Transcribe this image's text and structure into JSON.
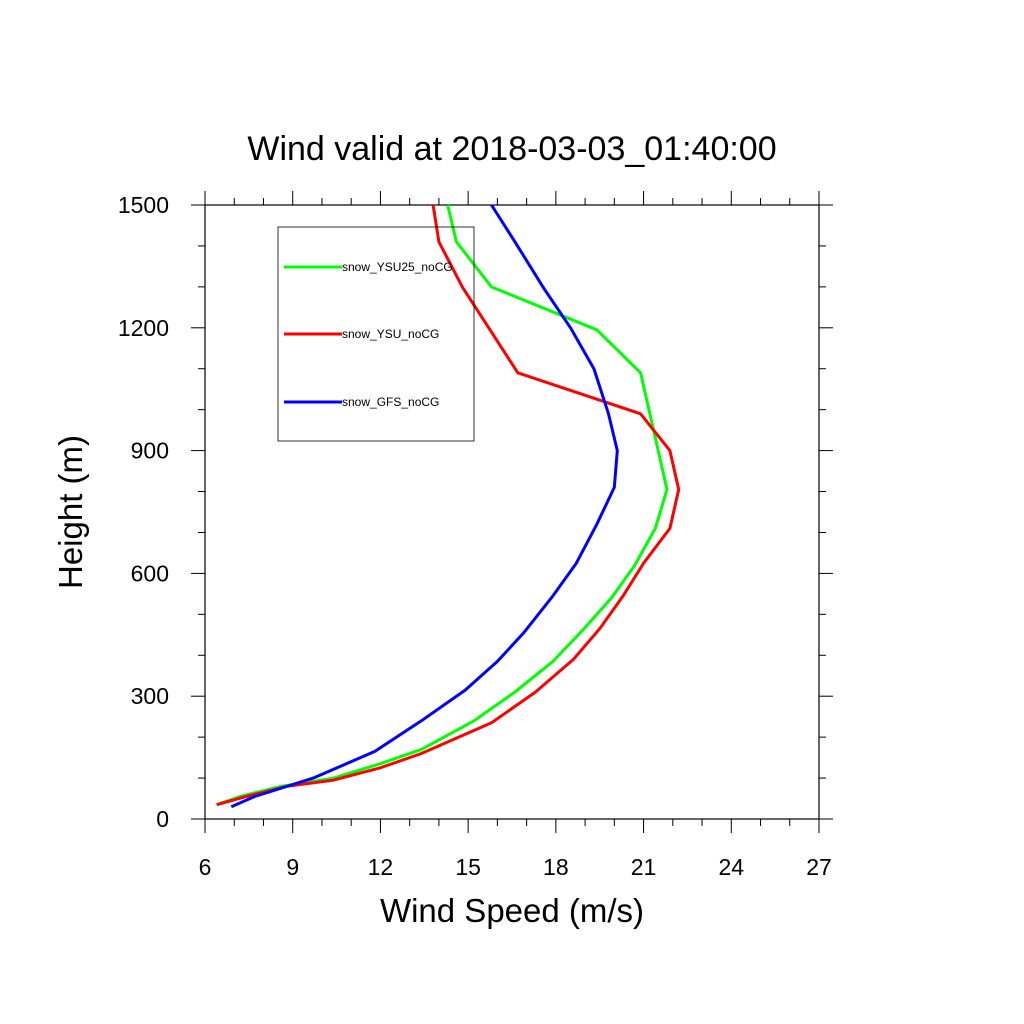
{
  "chart_data": {
    "type": "line",
    "title": "Wind valid at 2018-03-03_01:40:00",
    "xlabel": "Wind Speed (m/s)",
    "ylabel": "Height (m)",
    "xlim": [
      6,
      27
    ],
    "ylim": [
      0,
      1500
    ],
    "xticks": [
      6,
      9,
      12,
      15,
      18,
      21,
      24,
      27
    ],
    "yticks": [
      0,
      300,
      600,
      900,
      1200,
      1500
    ],
    "grid": false,
    "legend_position": "top-left",
    "series": [
      {
        "name": "snow_YSU25_noCG",
        "color": "#00ff00",
        "points": [
          [
            6.4,
            35
          ],
          [
            7.2,
            55
          ],
          [
            8.6,
            80
          ],
          [
            10.4,
            100
          ],
          [
            12.0,
            135
          ],
          [
            13.4,
            170
          ],
          [
            15.2,
            240
          ],
          [
            16.6,
            310
          ],
          [
            17.9,
            385
          ],
          [
            18.9,
            460
          ],
          [
            19.9,
            540
          ],
          [
            20.7,
            620
          ],
          [
            21.4,
            710
          ],
          [
            21.8,
            805
          ],
          [
            21.5,
            900
          ],
          [
            20.9,
            1090
          ],
          [
            19.4,
            1195
          ],
          [
            15.8,
            1300
          ],
          [
            14.6,
            1410
          ],
          [
            14.3,
            1500
          ]
        ]
      },
      {
        "name": "snow_YSU_noCG",
        "color": "#ff0000",
        "points": [
          [
            6.4,
            35
          ],
          [
            7.4,
            55
          ],
          [
            8.8,
            80
          ],
          [
            10.4,
            95
          ],
          [
            12.0,
            125
          ],
          [
            13.4,
            160
          ],
          [
            15.8,
            235
          ],
          [
            17.3,
            310
          ],
          [
            18.6,
            390
          ],
          [
            19.5,
            465
          ],
          [
            20.3,
            545
          ],
          [
            21.0,
            625
          ],
          [
            21.9,
            710
          ],
          [
            22.2,
            805
          ],
          [
            21.9,
            900
          ],
          [
            20.9,
            990
          ],
          [
            16.7,
            1090
          ],
          [
            14.8,
            1300
          ],
          [
            14.0,
            1410
          ],
          [
            13.8,
            1500
          ]
        ]
      },
      {
        "name": "snow_GFS_noCG",
        "color": "#0000ff",
        "points": [
          [
            6.9,
            30
          ],
          [
            7.7,
            55
          ],
          [
            9.7,
            100
          ],
          [
            11.8,
            165
          ],
          [
            13.4,
            240
          ],
          [
            14.9,
            315
          ],
          [
            16.0,
            385
          ],
          [
            16.9,
            455
          ],
          [
            17.9,
            545
          ],
          [
            18.7,
            625
          ],
          [
            19.4,
            720
          ],
          [
            20.0,
            810
          ],
          [
            20.1,
            900
          ],
          [
            19.8,
            990
          ],
          [
            19.3,
            1100
          ],
          [
            18.5,
            1200
          ],
          [
            17.6,
            1295
          ],
          [
            16.6,
            1410
          ],
          [
            15.8,
            1500
          ]
        ]
      }
    ]
  }
}
